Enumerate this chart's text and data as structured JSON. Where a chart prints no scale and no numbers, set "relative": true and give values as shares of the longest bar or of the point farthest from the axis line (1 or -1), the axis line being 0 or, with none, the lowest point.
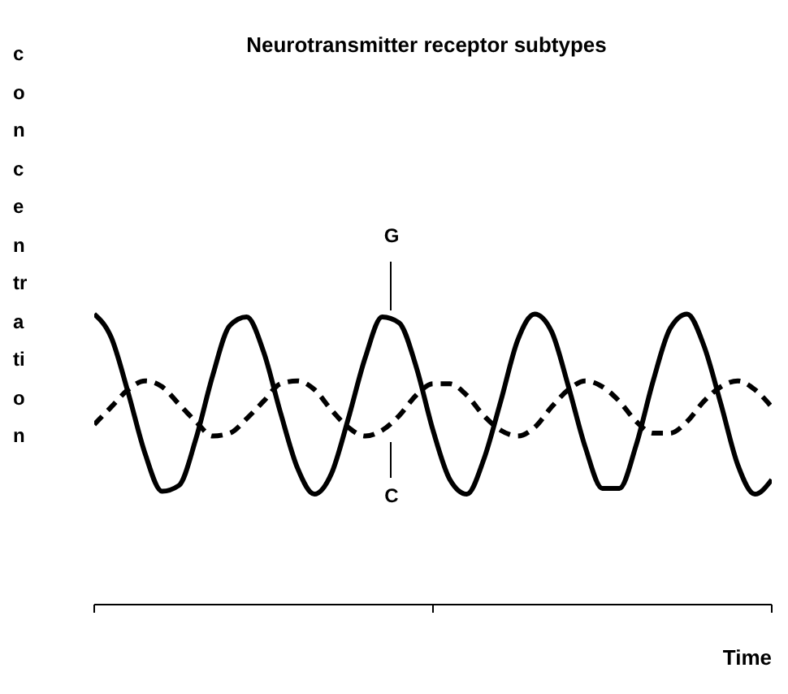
{
  "chart_data": {
    "type": "line",
    "title": "Neurotransmitter receptor subtypes",
    "xlabel": "Time",
    "ylabel": "concentration",
    "relative": true,
    "marker": "none",
    "categories": [
      null,
      null,
      null,
      null,
      null,
      null,
      null,
      null,
      null,
      null,
      null,
      null,
      null,
      null,
      null,
      null,
      null,
      null,
      null,
      null,
      null,
      null,
      null,
      null,
      null,
      null,
      null,
      null,
      null,
      null,
      null,
      null,
      null,
      null,
      null,
      null,
      null,
      null,
      null,
      null,
      null
    ],
    "series": [
      {
        "color": "#000000",
        "line_style": "solid",
        "values": [
          1.0,
          0.92,
          0.73,
          0.52,
          0.39,
          0.41,
          0.57,
          0.79,
          0.96,
          0.99,
          0.87,
          0.66,
          0.47,
          0.38,
          0.45,
          0.64,
          0.85,
          0.99,
          0.97,
          0.82,
          0.6,
          0.43,
          0.38,
          0.5,
          0.7,
          0.91,
          1.0,
          0.94,
          0.75,
          0.54,
          0.4,
          0.4,
          0.55,
          0.77,
          0.95,
          1.0,
          0.89,
          0.69,
          0.48,
          0.38,
          0.43
        ]
      },
      {
        "color": "#000000",
        "line_style": "dashed",
        "values": [
          0.62,
          0.68,
          0.74,
          0.77,
          0.75,
          0.69,
          0.63,
          0.58,
          0.59,
          0.64,
          0.7,
          0.76,
          0.77,
          0.74,
          0.67,
          0.61,
          0.58,
          0.6,
          0.65,
          0.72,
          0.76,
          0.76,
          0.72,
          0.65,
          0.6,
          0.58,
          0.61,
          0.68,
          0.74,
          0.77,
          0.75,
          0.7,
          0.63,
          0.59,
          0.59,
          0.63,
          0.7,
          0.75,
          0.77,
          0.74,
          0.68
        ]
      }
    ],
    "annotations": [
      "G",
      "C"
    ]
  }
}
